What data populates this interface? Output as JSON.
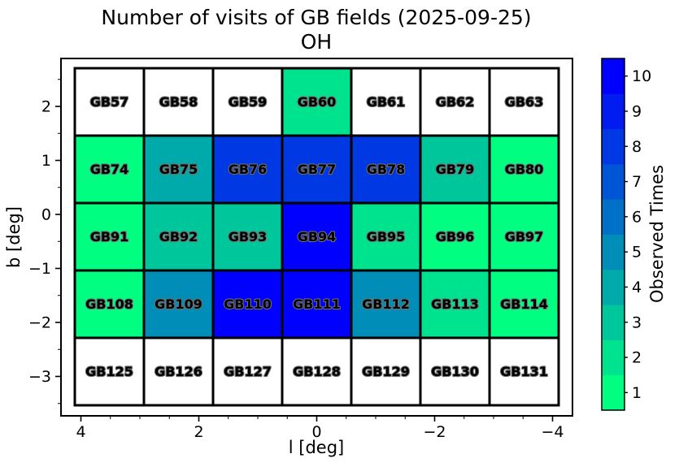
{
  "chart_data": {
    "type": "heatmap",
    "title": "Number of visits of GB fields (2025-09-25)",
    "subtitle": "OH",
    "xlabel": "l [deg]",
    "ylabel": "b [deg]",
    "x_ticks": [
      4,
      2,
      0,
      -2,
      -4
    ],
    "y_ticks": [
      2,
      1,
      0,
      -1,
      -2,
      -3
    ],
    "x_axis_reversed": true,
    "x_minor_step": 0.5,
    "y_minor_step": 0.5,
    "grid_shape": {
      "rows": 5,
      "cols": 7
    },
    "field_names": [
      [
        "GB57",
        "GB58",
        "GB59",
        "GB60",
        "GB61",
        "GB62",
        "GB63"
      ],
      [
        "GB74",
        "GB75",
        "GB76",
        "GB77",
        "GB78",
        "GB79",
        "GB80"
      ],
      [
        "GB91",
        "GB92",
        "GB93",
        "GB94",
        "GB95",
        "GB96",
        "GB97"
      ],
      [
        "GB108",
        "GB109",
        "GB110",
        "GB111",
        "GB112",
        "GB113",
        "GB114"
      ],
      [
        "GB125",
        "GB126",
        "GB127",
        "GB128",
        "GB129",
        "GB130",
        "GB131"
      ]
    ],
    "visit_counts": [
      [
        0,
        0,
        0,
        2,
        0,
        0,
        0
      ],
      [
        1,
        4,
        8,
        8,
        8,
        3,
        1
      ],
      [
        1,
        3,
        3,
        10,
        2,
        1,
        1
      ],
      [
        1,
        5,
        10,
        10,
        5,
        2,
        1
      ],
      [
        0,
        0,
        0,
        0,
        0,
        0,
        0
      ]
    ],
    "unobserved_value": 0,
    "unobserved_color": "#ffffff",
    "colormap": {
      "name": "winter_r",
      "low_value": 1,
      "high_value": 10,
      "low_color": "#00ff80",
      "high_color": "#0000ff"
    },
    "colorbar": {
      "label": "Observed Times",
      "ticks": [
        1,
        2,
        3,
        4,
        5,
        6,
        7,
        8,
        9,
        10
      ],
      "position": "right",
      "segments": 10
    },
    "cell_label_style": {
      "fill": "#ffffff",
      "outline": "#6e6e6e"
    },
    "grid_line_color": "#000000"
  }
}
